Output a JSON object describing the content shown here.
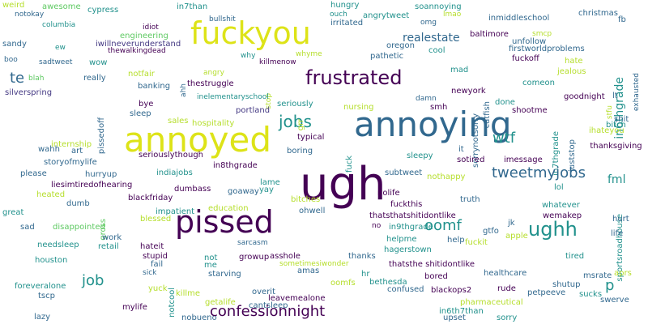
{
  "words": [
    {
      "text": "weird",
      "color": "#b5de2b"
    },
    {
      "text": "awesome",
      "color": "#5ec962"
    },
    {
      "text": "cypress",
      "color": "#21918c"
    },
    {
      "text": "notokay",
      "color": "#31688e"
    },
    {
      "text": "columbia",
      "color": "#21918c"
    },
    {
      "text": "sandy",
      "color": "#31688e"
    },
    {
      "text": "ew",
      "color": "#21918c"
    },
    {
      "text": "boo",
      "color": "#31688e"
    },
    {
      "text": "blah",
      "color": "#5ec962"
    },
    {
      "text": "sadtweet",
      "color": "#31688e"
    },
    {
      "text": "wow",
      "color": "#21918c"
    },
    {
      "text": "silverspring",
      "color": "#443983"
    },
    {
      "text": "te",
      "color": "#31688e"
    },
    {
      "text": "really",
      "color": "#31688e"
    },
    {
      "text": "in7than",
      "color": "#21918c"
    },
    {
      "text": "bullshit",
      "color": "#31688e"
    },
    {
      "text": "idiot",
      "color": "#440154"
    },
    {
      "text": "engineering",
      "color": "#5ec962"
    },
    {
      "text": "iwillneverunderstand",
      "color": "#443983"
    },
    {
      "text": "thewalkingdead",
      "color": "#440154"
    },
    {
      "text": "fuckyou",
      "color": "#dde318"
    },
    {
      "text": "hungry",
      "color": "#21918c"
    },
    {
      "text": "irritated",
      "color": "#31688e"
    },
    {
      "text": "ouch",
      "color": "#21918c"
    },
    {
      "text": "angrytweet",
      "color": "#21918c"
    },
    {
      "text": "soannoying",
      "color": "#21918c"
    },
    {
      "text": "omg",
      "color": "#31688e"
    },
    {
      "text": "lmao",
      "color": "#b5de2b"
    },
    {
      "text": "inmiddleschool",
      "color": "#31688e"
    },
    {
      "text": "christmas",
      "color": "#31688e"
    },
    {
      "text": "fb",
      "color": "#31688e"
    },
    {
      "text": "baltimore",
      "color": "#440154"
    },
    {
      "text": "smcp",
      "color": "#b5de2b"
    },
    {
      "text": "unfollow",
      "color": "#31688e"
    },
    {
      "text": "firstworldproblems",
      "color": "#31688e"
    },
    {
      "text": "in6thgrade",
      "color": "#21918c"
    },
    {
      "text": "exhausted",
      "color": "#31688e"
    },
    {
      "text": "oregon",
      "color": "#31688e"
    },
    {
      "text": "realestate",
      "color": "#31688e"
    },
    {
      "text": "cool",
      "color": "#21918c"
    },
    {
      "text": "why",
      "color": "#21918c"
    },
    {
      "text": "whyme",
      "color": "#b5de2b"
    },
    {
      "text": "killmenow",
      "color": "#440154"
    },
    {
      "text": "pathetic",
      "color": "#31688e"
    },
    {
      "text": "fuckoff",
      "color": "#440154"
    },
    {
      "text": "hate",
      "color": "#b5de2b"
    },
    {
      "text": "jealous",
      "color": "#b5de2b"
    },
    {
      "text": "frustrated",
      "color": "#440154"
    },
    {
      "text": "mad",
      "color": "#21918c"
    },
    {
      "text": "sorrynotsorry",
      "color": "#31688e"
    },
    {
      "text": "notfair",
      "color": "#b5de2b"
    },
    {
      "text": "angry",
      "color": "#b5de2b"
    },
    {
      "text": "ahh",
      "color": "#31688e"
    },
    {
      "text": "thestruggle",
      "color": "#440154"
    },
    {
      "text": "stop",
      "color": "#b5de2b"
    },
    {
      "text": "banking",
      "color": "#31688e"
    },
    {
      "text": "newyork",
      "color": "#440154"
    },
    {
      "text": "catfish",
      "color": "#31688e"
    },
    {
      "text": "comeon",
      "color": "#21918c"
    },
    {
      "text": "goodnight",
      "color": "#440154"
    },
    {
      "text": "lt",
      "color": "#31688e"
    },
    {
      "text": "stfu",
      "color": "#b5de2b"
    },
    {
      "text": "inelementaryschool",
      "color": "#21918c"
    },
    {
      "text": "damn",
      "color": "#31688e"
    },
    {
      "text": "bye",
      "color": "#440154"
    },
    {
      "text": "pissedoff",
      "color": "#31688e"
    },
    {
      "text": "seriously",
      "color": "#21918c"
    },
    {
      "text": "smh",
      "color": "#440154"
    },
    {
      "text": "done",
      "color": "#21918c"
    },
    {
      "text": "in7thgrade",
      "color": "#21918c"
    },
    {
      "text": "sleep",
      "color": "#31688e"
    },
    {
      "text": "portland",
      "color": "#443983"
    },
    {
      "text": "nursing",
      "color": "#b5de2b"
    },
    {
      "text": "shootme",
      "color": "#440154"
    },
    {
      "text": "annoyed",
      "color": "#dde318"
    },
    {
      "text": "sales",
      "color": "#b5de2b"
    },
    {
      "text": "jobs",
      "color": "#21918c"
    },
    {
      "text": "grr",
      "color": "#b5de2b"
    },
    {
      "text": "annoying",
      "color": "#31688e"
    },
    {
      "text": "juststop",
      "color": "#31688e"
    },
    {
      "text": "bitch",
      "color": "#21918c"
    },
    {
      "text": "shit",
      "color": "#31688e"
    },
    {
      "text": "hospitality",
      "color": "#b5de2b"
    },
    {
      "text": "typical",
      "color": "#440154"
    },
    {
      "text": "ihateyou",
      "color": "#b5de2b"
    },
    {
      "text": "internship",
      "color": "#b5de2b"
    },
    {
      "text": "thanksgiving",
      "color": "#440154"
    },
    {
      "text": "wahh",
      "color": "#31688e"
    },
    {
      "text": "art",
      "color": "#31688e"
    },
    {
      "text": "seriouslythough",
      "color": "#440154"
    },
    {
      "text": "fuck",
      "color": "#21918c"
    },
    {
      "text": "boring",
      "color": "#31688e"
    },
    {
      "text": "it",
      "color": "#31688e"
    },
    {
      "text": "imessage",
      "color": "#440154"
    },
    {
      "text": "sleepy",
      "color": "#21918c"
    },
    {
      "text": "wtf",
      "color": "#21918c"
    },
    {
      "text": "storyofmylife",
      "color": "#31688e"
    },
    {
      "text": "in8thgrade",
      "color": "#440154"
    },
    {
      "text": "sotired",
      "color": "#440154"
    },
    {
      "text": "tweetmyjobs",
      "color": "#31688e"
    },
    {
      "text": "fml",
      "color": "#21918c"
    },
    {
      "text": "please",
      "color": "#31688e"
    },
    {
      "text": "hurryup",
      "color": "#31688e"
    },
    {
      "text": "indiajobs",
      "color": "#21918c"
    },
    {
      "text": "ugh",
      "color": "#440154"
    },
    {
      "text": "subtweet",
      "color": "#31688e"
    },
    {
      "text": "nothappy",
      "color": "#b5de2b"
    },
    {
      "text": "sportsroadhouse",
      "color": "#21918c"
    },
    {
      "text": "liesimtiredofhearing",
      "color": "#440154"
    },
    {
      "text": "heated",
      "color": "#b5de2b"
    },
    {
      "text": "dumb",
      "color": "#31688e"
    },
    {
      "text": "lame",
      "color": "#21918c"
    },
    {
      "text": "goaway",
      "color": "#31688e"
    },
    {
      "text": "dumbass",
      "color": "#440154"
    },
    {
      "text": "nolife",
      "color": "#440154"
    },
    {
      "text": "truth",
      "color": "#31688e"
    },
    {
      "text": "lol",
      "color": "#21918c"
    },
    {
      "text": "blackfriday",
      "color": "#440154"
    },
    {
      "text": "yay",
      "color": "#21918c"
    },
    {
      "text": "fuckthis",
      "color": "#440154"
    },
    {
      "text": "whatever",
      "color": "#21918c"
    },
    {
      "text": "education",
      "color": "#b5de2b"
    },
    {
      "text": "bitches",
      "color": "#b5de2b"
    },
    {
      "text": "great",
      "color": "#21918c"
    },
    {
      "text": "gross",
      "color": "#5ec962"
    },
    {
      "text": "impatient",
      "color": "#21918c"
    },
    {
      "text": "ohwell",
      "color": "#31688e"
    },
    {
      "text": "thatsthatshitidontlike",
      "color": "#440154"
    },
    {
      "text": "wemakep",
      "color": "#440154"
    },
    {
      "text": "pissed",
      "color": "#440154"
    },
    {
      "text": "hurt",
      "color": "#31688e"
    },
    {
      "text": "sad",
      "color": "#31688e"
    },
    {
      "text": "disappointed",
      "color": "#5ec962"
    },
    {
      "text": "blessed",
      "color": "#b5de2b"
    },
    {
      "text": "jk",
      "color": "#31688e"
    },
    {
      "text": "no",
      "color": "#440154"
    },
    {
      "text": "in9thgrade",
      "color": "#21918c"
    },
    {
      "text": "gtfo",
      "color": "#31688e"
    },
    {
      "text": "oomf",
      "color": "#21918c"
    },
    {
      "text": "life",
      "color": "#31688e"
    },
    {
      "text": "ughh",
      "color": "#21918c"
    },
    {
      "text": "work",
      "color": "#31688e"
    },
    {
      "text": "needsleep",
      "color": "#21918c"
    },
    {
      "text": "retail",
      "color": "#21918c"
    },
    {
      "text": "hateit",
      "color": "#440154"
    },
    {
      "text": "sarcasm",
      "color": "#31688e"
    },
    {
      "text": "hagerstown",
      "color": "#21918c"
    },
    {
      "text": "helpme",
      "color": "#21918c"
    },
    {
      "text": "help",
      "color": "#31688e"
    },
    {
      "text": "fuckit",
      "color": "#b5de2b"
    },
    {
      "text": "apple",
      "color": "#b5de2b"
    },
    {
      "text": "stupid",
      "color": "#440154"
    },
    {
      "text": "growup",
      "color": "#440154"
    },
    {
      "text": "asshole",
      "color": "#440154"
    },
    {
      "text": "tired",
      "color": "#21918c"
    },
    {
      "text": "houston",
      "color": "#21918c"
    },
    {
      "text": "fail",
      "color": "#31688e"
    },
    {
      "text": "not",
      "color": "#21918c"
    },
    {
      "text": "me",
      "color": "#21918c"
    },
    {
      "text": "thanks",
      "color": "#31688e"
    },
    {
      "text": "thatsthe shitidontlike",
      "color": "#440154"
    },
    {
      "text": "healthcare",
      "color": "#31688e"
    },
    {
      "text": "aprs",
      "color": "#b5de2b"
    },
    {
      "text": "sick",
      "color": "#31688e"
    },
    {
      "text": "starving",
      "color": "#31688e"
    },
    {
      "text": "sometimesiwonder",
      "color": "#b5de2b"
    },
    {
      "text": "hr",
      "color": "#21918c"
    },
    {
      "text": "job",
      "color": "#21918c"
    },
    {
      "text": "bored",
      "color": "#440154"
    },
    {
      "text": "msrate",
      "color": "#31688e"
    },
    {
      "text": "amas",
      "color": "#31688e"
    },
    {
      "text": "bethesda",
      "color": "#21918c"
    },
    {
      "text": "p",
      "color": "#21918c"
    },
    {
      "text": "foreveralone",
      "color": "#21918c"
    },
    {
      "text": "yuck",
      "color": "#b5de2b"
    },
    {
      "text": "oomfs",
      "color": "#b5de2b"
    },
    {
      "text": "confused",
      "color": "#31688e"
    },
    {
      "text": "shutup",
      "color": "#31688e"
    },
    {
      "text": "tscp",
      "color": "#31688e"
    },
    {
      "text": "killme",
      "color": "#b5de2b"
    },
    {
      "text": "overit",
      "color": "#31688e"
    },
    {
      "text": "blackops2",
      "color": "#440154"
    },
    {
      "text": "rude",
      "color": "#440154"
    },
    {
      "text": "petpeeve",
      "color": "#31688e"
    },
    {
      "text": "sucks",
      "color": "#21918c"
    },
    {
      "text": "notcool",
      "color": "#21918c"
    },
    {
      "text": "getalife",
      "color": "#b5de2b"
    },
    {
      "text": "leavemealone",
      "color": "#440154"
    },
    {
      "text": "cantsleep",
      "color": "#31688e"
    },
    {
      "text": "pharmaceutical",
      "color": "#b5de2b"
    },
    {
      "text": "swerve",
      "color": "#31688e"
    },
    {
      "text": "lazy",
      "color": "#31688e"
    },
    {
      "text": "mylife",
      "color": "#440154"
    },
    {
      "text": "nobueno",
      "color": "#31688e"
    },
    {
      "text": "confessionnight",
      "color": "#440154"
    },
    {
      "text": "in6th7than",
      "color": "#21918c"
    },
    {
      "text": "upset",
      "color": "#31688e"
    },
    {
      "text": "sorry",
      "color": "#21918c"
    }
  ]
}
